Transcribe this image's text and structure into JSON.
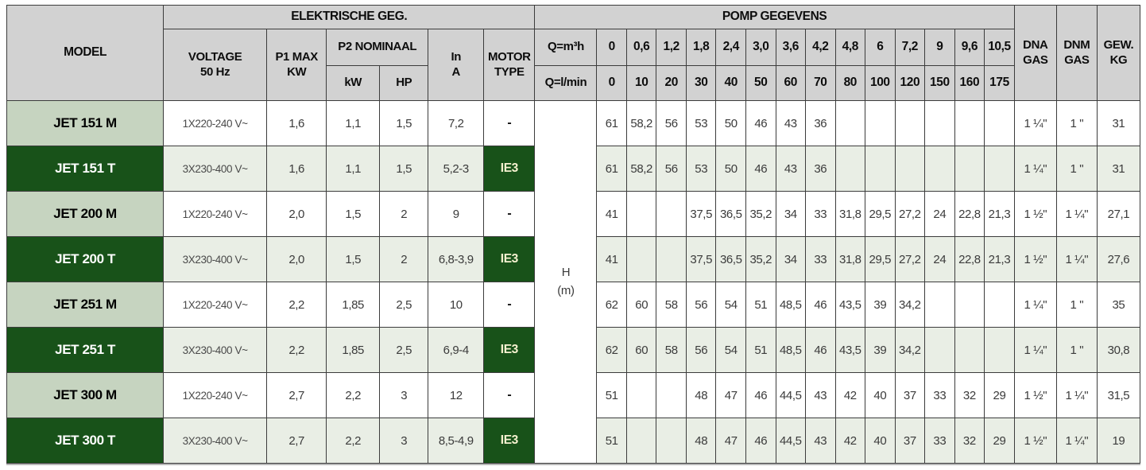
{
  "colors": {
    "header_bg": "#d2d2d2",
    "border": "#3c3c3c",
    "model_m_bg": "#c6d4c0",
    "model_t_bg": "#185219",
    "row_t_bg": "#e9eee5",
    "ie3_bg": "#185219",
    "ie3_text": "#f5f1cf"
  },
  "table": {
    "headers": {
      "model": "MODEL",
      "elektrische": "ELEKTRISCHE GEG.",
      "pomp": "POMP GEGEVENS",
      "voltage": "VOLTAGE\n50 Hz",
      "p1max": "P1 MAX\nKW",
      "p2nominaal": "P2 NOMINAAL",
      "kw": "kW",
      "hp": "HP",
      "in_a": "In\nA",
      "motor_type": "MOTOR\nTYPE",
      "q_m3h": "Q=m³h",
      "q_lmin": "Q=l/min",
      "dna_gas": "DNA\nGAS",
      "dnm_gas": "DNM\nGAS",
      "gew_kg": "GEW.\nKG",
      "h_label": "H\n(m)"
    },
    "q_m3h_values": [
      "0",
      "0,6",
      "1,2",
      "1,8",
      "2,4",
      "3,0",
      "3,6",
      "4,2",
      "4,8",
      "6",
      "7,2",
      "9",
      "9,6",
      "10,5"
    ],
    "q_lmin_values": [
      "0",
      "10",
      "20",
      "30",
      "40",
      "50",
      "60",
      "70",
      "80",
      "100",
      "120",
      "150",
      "160",
      "175"
    ],
    "rows": [
      {
        "model": "JET 151 M",
        "type": "M",
        "voltage": "1X220-240 V~",
        "p1_max_kw": "1,6",
        "p2_kw": "1,1",
        "p2_hp": "1,5",
        "in_a": "7,2",
        "motor_type": "-",
        "h_values": [
          "61",
          "58,2",
          "56",
          "53",
          "50",
          "46",
          "43",
          "36",
          "",
          "",
          "",
          "",
          "",
          ""
        ],
        "dna_gas": "1 ¼\"",
        "dnm_gas": "1 \"",
        "gew_kg": "31"
      },
      {
        "model": "JET 151 T",
        "type": "T",
        "voltage": "3X230-400 V~",
        "p1_max_kw": "1,6",
        "p2_kw": "1,1",
        "p2_hp": "1,5",
        "in_a": "5,2-3",
        "motor_type": "IE3",
        "h_values": [
          "61",
          "58,2",
          "56",
          "53",
          "50",
          "46",
          "43",
          "36",
          "",
          "",
          "",
          "",
          "",
          ""
        ],
        "dna_gas": "1 ¼\"",
        "dnm_gas": "1 \"",
        "gew_kg": "31"
      },
      {
        "model": "JET 200 M",
        "type": "M",
        "voltage": "1X220-240 V~",
        "p1_max_kw": "2,0",
        "p2_kw": "1,5",
        "p2_hp": "2",
        "in_a": "9",
        "motor_type": "-",
        "h_values": [
          "41",
          "",
          "",
          "37,5",
          "36,5",
          "35,2",
          "34",
          "33",
          "31,8",
          "29,5",
          "27,2",
          "24",
          "22,8",
          "21,3"
        ],
        "dna_gas": "1 ½\"",
        "dnm_gas": "1 ¼\"",
        "gew_kg": "27,1"
      },
      {
        "model": "JET 200 T",
        "type": "T",
        "voltage": "3X230-400 V~",
        "p1_max_kw": "2,0",
        "p2_kw": "1,5",
        "p2_hp": "2",
        "in_a": "6,8-3,9",
        "motor_type": "IE3",
        "h_values": [
          "41",
          "",
          "",
          "37,5",
          "36,5",
          "35,2",
          "34",
          "33",
          "31,8",
          "29,5",
          "27,2",
          "24",
          "22,8",
          "21,3"
        ],
        "dna_gas": "1 ½\"",
        "dnm_gas": "1 ¼\"",
        "gew_kg": "27,6"
      },
      {
        "model": "JET 251 M",
        "type": "M",
        "voltage": "1X220-240 V~",
        "p1_max_kw": "2,2",
        "p2_kw": "1,85",
        "p2_hp": "2,5",
        "in_a": "10",
        "motor_type": "-",
        "h_values": [
          "62",
          "60",
          "58",
          "56",
          "54",
          "51",
          "48,5",
          "46",
          "43,5",
          "39",
          "34,2",
          "",
          "",
          ""
        ],
        "dna_gas": "1 ¼\"",
        "dnm_gas": "1 \"",
        "gew_kg": "35"
      },
      {
        "model": "JET 251 T",
        "type": "T",
        "voltage": "3X230-400 V~",
        "p1_max_kw": "2,2",
        "p2_kw": "1,85",
        "p2_hp": "2,5",
        "in_a": "6,9-4",
        "motor_type": "IE3",
        "h_values": [
          "62",
          "60",
          "58",
          "56",
          "54",
          "51",
          "48,5",
          "46",
          "43,5",
          "39",
          "34,2",
          "",
          "",
          ""
        ],
        "dna_gas": "1 ¼\"",
        "dnm_gas": "1 \"",
        "gew_kg": "30,8"
      },
      {
        "model": "JET 300 M",
        "type": "M",
        "voltage": "1X220-240 V~",
        "p1_max_kw": "2,7",
        "p2_kw": "2,2",
        "p2_hp": "3",
        "in_a": "12",
        "motor_type": "-",
        "h_values": [
          "51",
          "",
          "",
          "48",
          "47",
          "46",
          "44,5",
          "43",
          "42",
          "40",
          "37",
          "33",
          "32",
          "29"
        ],
        "dna_gas": "1 ½\"",
        "dnm_gas": "1 ¼\"",
        "gew_kg": "31,5"
      },
      {
        "model": "JET 300 T",
        "type": "T",
        "voltage": "3X230-400 V~",
        "p1_max_kw": "2,7",
        "p2_kw": "2,2",
        "p2_hp": "3",
        "in_a": "8,5-4,9",
        "motor_type": "IE3",
        "h_values": [
          "51",
          "",
          "",
          "48",
          "47",
          "46",
          "44,5",
          "43",
          "42",
          "40",
          "37",
          "33",
          "32",
          "29"
        ],
        "dna_gas": "1 ½\"",
        "dnm_gas": "1 ¼\"",
        "gew_kg": "19"
      }
    ]
  }
}
